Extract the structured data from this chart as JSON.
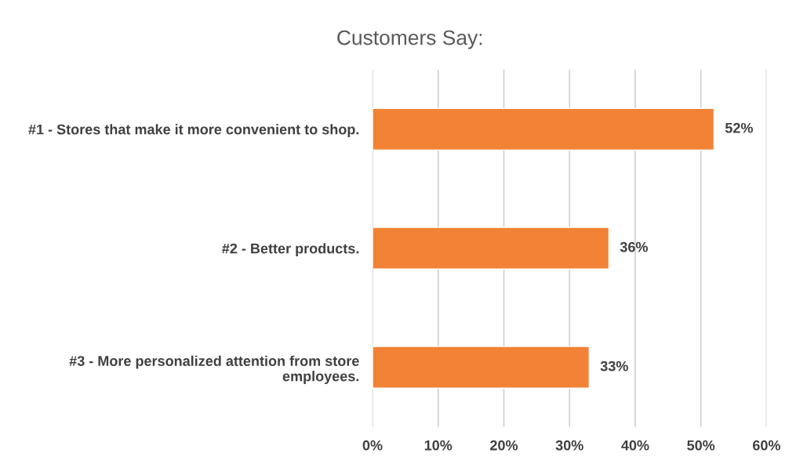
{
  "chart_data": {
    "type": "bar",
    "orientation": "horizontal",
    "title": "Customers Say:",
    "categories": [
      "#1 - Stores that make it more convenient to shop.",
      "#2 - Better products.",
      "#3 - More personalized attention from store employees."
    ],
    "values": [
      52,
      36,
      33
    ],
    "value_labels": [
      "52%",
      "36%",
      "33%"
    ],
    "color": "#f28235",
    "xlim": [
      0,
      60
    ],
    "xticks": [
      {
        "value": 0,
        "label": "0%"
      },
      {
        "value": 10,
        "label": "10%"
      },
      {
        "value": 20,
        "label": "20%"
      },
      {
        "value": 30,
        "label": "30%"
      },
      {
        "value": 40,
        "label": "40%"
      },
      {
        "value": 50,
        "label": "50%"
      },
      {
        "value": 60,
        "label": "60%"
      }
    ],
    "grid": "x"
  }
}
